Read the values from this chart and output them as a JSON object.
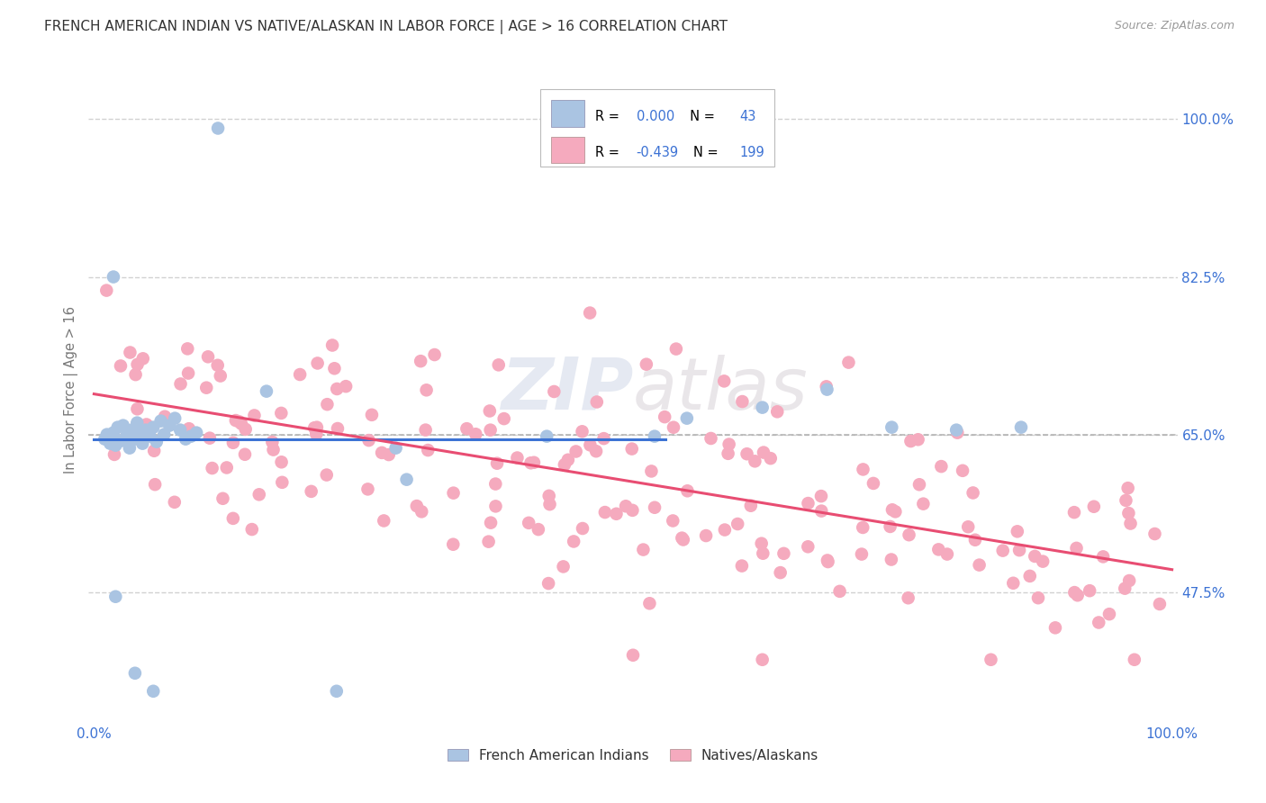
{
  "title": "FRENCH AMERICAN INDIAN VS NATIVE/ALASKAN IN LABOR FORCE | AGE > 16 CORRELATION CHART",
  "source": "Source: ZipAtlas.com",
  "ylabel": "In Labor Force | Age > 16",
  "xlim": [
    0.0,
    1.0
  ],
  "ylim": [
    0.33,
    1.07
  ],
  "right_ytick_labels": [
    "100.0%",
    "82.5%",
    "65.0%",
    "47.5%"
  ],
  "right_ytick_positions": [
    1.0,
    0.825,
    0.65,
    0.475
  ],
  "xtick_labels_shown": [
    "0.0%",
    "100.0%"
  ],
  "xtick_positions_shown": [
    0.0,
    1.0
  ],
  "blue_R": "0.000",
  "blue_N": "43",
  "pink_R": "-0.439",
  "pink_N": "199",
  "blue_color": "#aac4e2",
  "pink_color": "#f5aabe",
  "blue_line_color": "#3c72d4",
  "pink_line_color": "#e84d72",
  "dashed_line_y": 0.65,
  "dashed_line_color": "#aaaaaa",
  "watermark": "ZIPAtlas",
  "legend_blue_label": "French American Indians",
  "legend_pink_label": "Natives/Alaskans",
  "background_color": "#ffffff",
  "grid_color": "#cccccc",
  "title_color": "#333333",
  "axis_label_color": "#777777",
  "tick_label_color": "#3c72d4",
  "source_color": "#999999",
  "blue_line_y": 0.645,
  "pink_line_x0": 0.0,
  "pink_line_y0": 0.695,
  "pink_line_x1": 1.0,
  "pink_line_y1": 0.5
}
